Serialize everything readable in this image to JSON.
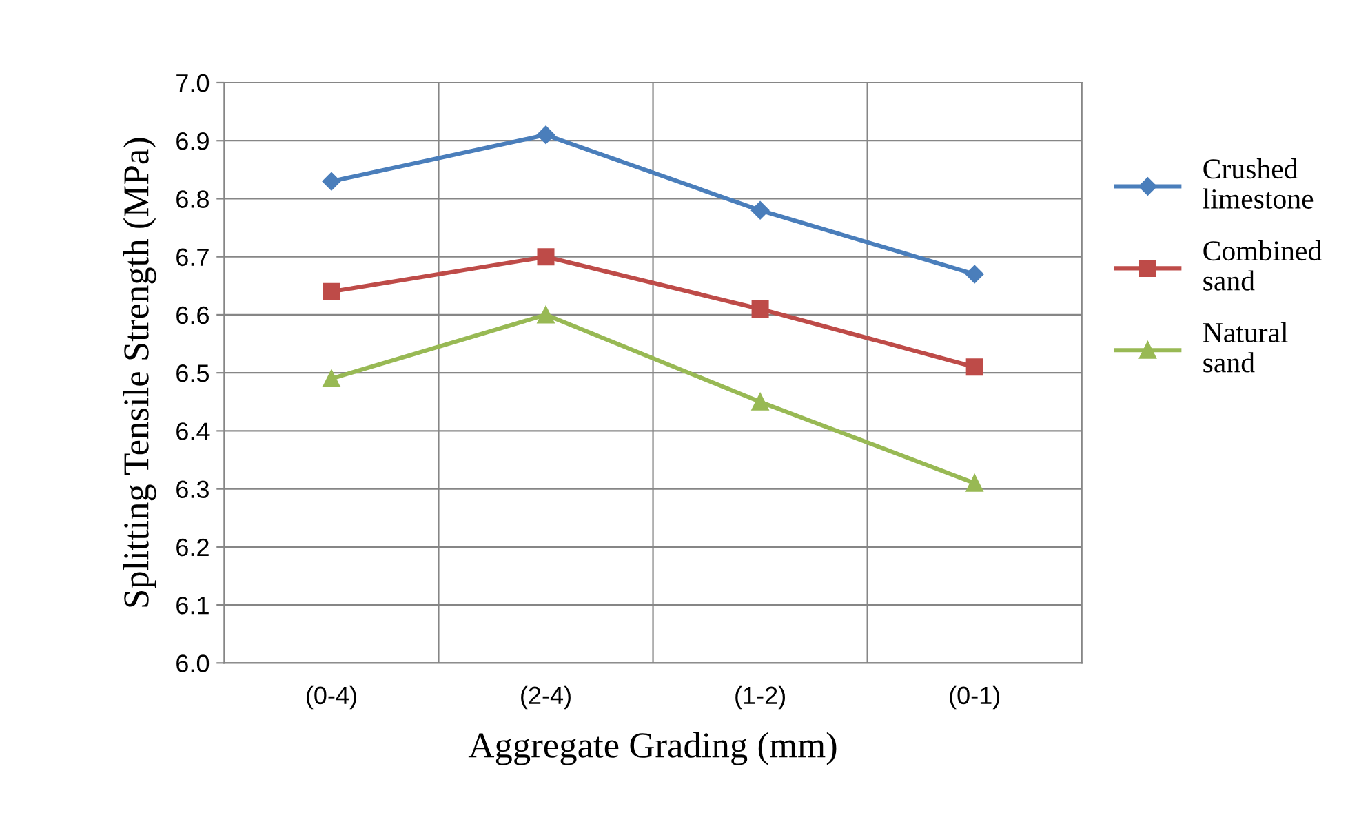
{
  "chart_data": {
    "type": "line",
    "xlabel": "Aggregate Grading (mm)",
    "ylabel": "Splitting Tensile Strength (MPa)",
    "categories": [
      "(0-4)",
      "(2-4)",
      "(1-2)",
      "(0-1)"
    ],
    "series": [
      {
        "name": "Crushed limestone",
        "color": "#4a7ebb",
        "marker": "diamond",
        "values": [
          6.83,
          6.91,
          6.78,
          6.67
        ]
      },
      {
        "name": "Combined sand",
        "color": "#be4b48",
        "marker": "square",
        "values": [
          6.64,
          6.7,
          6.61,
          6.51
        ]
      },
      {
        "name": "Natural sand",
        "color": "#98b954",
        "marker": "triangle",
        "values": [
          6.49,
          6.6,
          6.45,
          6.31
        ]
      }
    ],
    "ylim": [
      6.0,
      7.0
    ],
    "yticks": [
      {
        "value": 6.0,
        "label": "6.0"
      },
      {
        "value": 6.1,
        "label": "6.1"
      },
      {
        "value": 6.2,
        "label": "6.2"
      },
      {
        "value": 6.3,
        "label": "6.3"
      },
      {
        "value": 6.4,
        "label": "6.4"
      },
      {
        "value": 6.5,
        "label": "6.5"
      },
      {
        "value": 6.6,
        "label": "6.6"
      },
      {
        "value": 6.7,
        "label": "6.7"
      },
      {
        "value": 6.8,
        "label": "6.8"
      },
      {
        "value": 6.9,
        "label": "6.9"
      },
      {
        "value": 7.0,
        "label": "7.0"
      }
    ],
    "grid": true,
    "legend": "right",
    "line_style": "solid"
  }
}
